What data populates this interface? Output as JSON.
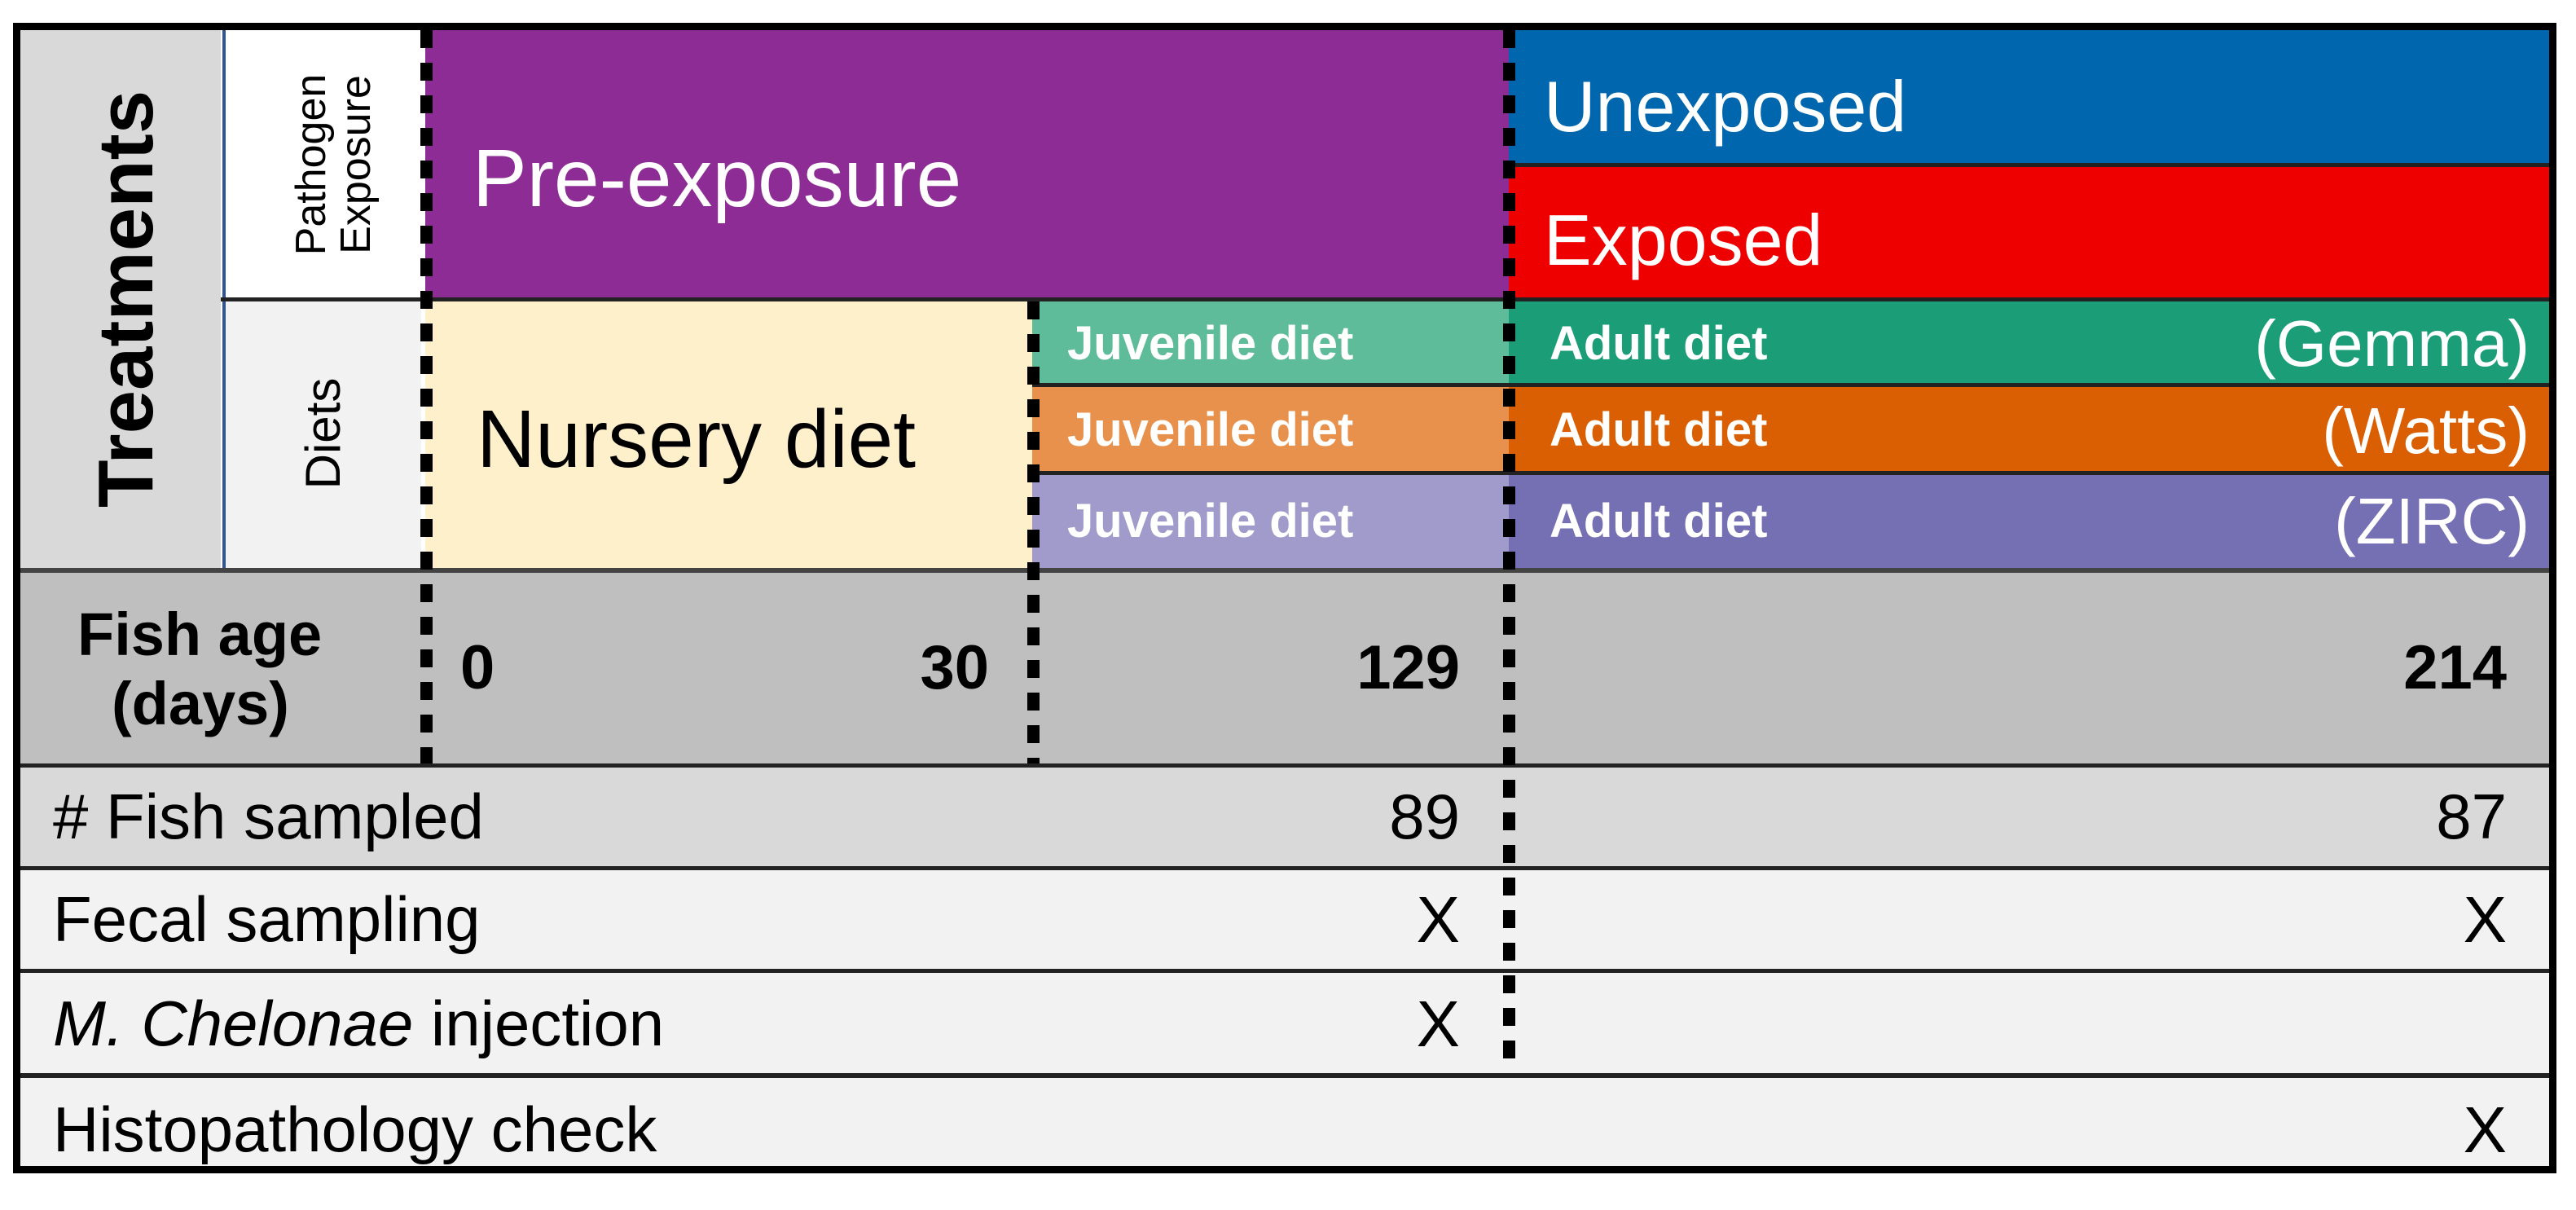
{
  "treatments": {
    "title": "Treatments",
    "pathogen_exposure_label": "Pathogen\nExposure",
    "diets_label": "Diets"
  },
  "phases": {
    "pre_exposure": "Pre-exposure",
    "unexposed": "Unexposed",
    "exposed": "Exposed",
    "nursery_diet": "Nursery diet"
  },
  "diets": [
    {
      "juvenile": "Juvenile diet",
      "adult": "Adult diet",
      "brand": "(Gemma)",
      "juvenile_color": "#5fbc9a",
      "adult_color": "#1b9e77"
    },
    {
      "juvenile": "Juvenile diet",
      "adult": "Adult diet",
      "brand": "(Watts)",
      "juvenile_color": "#e8914c",
      "adult_color": "#d95f02"
    },
    {
      "juvenile": "Juvenile diet",
      "adult": "Adult diet",
      "brand": "(ZIRC)",
      "juvenile_color": "#a09bcb",
      "adult_color": "#7570b3"
    }
  ],
  "fish_age": {
    "label_line1": "Fish age",
    "label_line2": "(days)",
    "ticks": [
      "0",
      "30",
      "129",
      "214"
    ]
  },
  "rows": {
    "fish_sampled": {
      "label": "# Fish sampled",
      "pre": "89",
      "post": "87"
    },
    "fecal_sampling": {
      "label": "Fecal sampling",
      "pre": "X",
      "post": "X"
    },
    "injection": {
      "label_italic": "M. Chelonae",
      "label_rest": " injection",
      "pre": "X",
      "post": ""
    },
    "histopathology": {
      "label": "Histopathology check",
      "pre": "",
      "post": "X"
    }
  },
  "colors": {
    "pre_exposure": "#8e2c95",
    "unexposed": "#0066ad",
    "exposed": "#ee0000",
    "nursery": "#fff0cc",
    "age_band": "#bfbfbf",
    "sampled_band": "#d9d9d9",
    "light_band": "#f2f2f2"
  }
}
